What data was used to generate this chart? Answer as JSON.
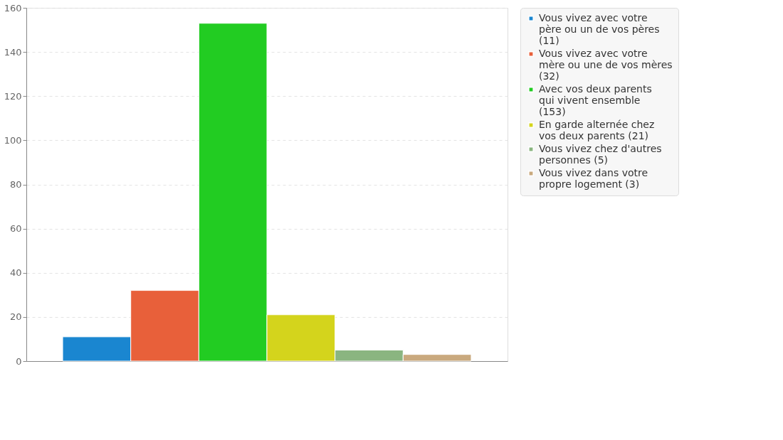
{
  "chart_data": {
    "type": "bar",
    "categories": [
      null
    ],
    "series": [
      {
        "name": "Vous vivez avec votre père ou un de vos pères (11)",
        "color": "#1a86d0",
        "values": [
          11
        ]
      },
      {
        "name": "Vous vivez avec votre mère ou une de vos mères (32)",
        "color": "#e8603a",
        "values": [
          32
        ]
      },
      {
        "name": "Avec vos deux parents qui vivent ensemble (153)",
        "color": "#22cc22",
        "values": [
          153
        ]
      },
      {
        "name": "En garde alternée chez vos deux parents (21)",
        "color": "#d4d41c",
        "values": [
          21
        ]
      },
      {
        "name": "Vous vivez chez d'autres personnes (5)",
        "color": "#8ab580",
        "values": [
          5
        ]
      },
      {
        "name": "Vous vivez dans votre propre logement (3)",
        "color": "#c9a97e",
        "values": [
          3
        ]
      }
    ],
    "ylim": [
      0,
      160
    ],
    "yticks": [
      0,
      20,
      40,
      60,
      80,
      100,
      120,
      140,
      160
    ],
    "grid": "y",
    "legend": "right",
    "tick_labels": "y"
  }
}
